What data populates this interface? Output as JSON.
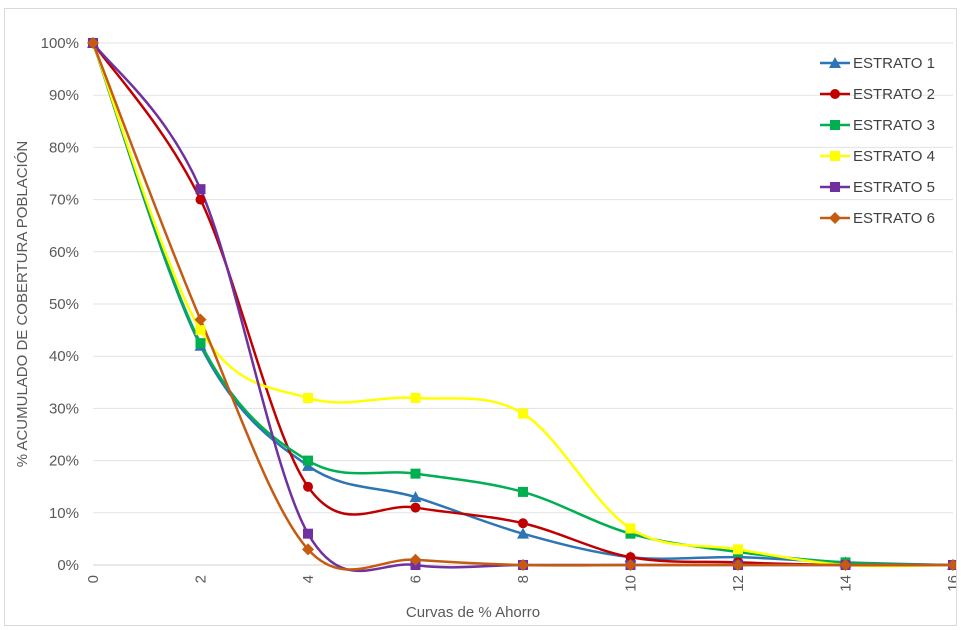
{
  "chart_data": {
    "type": "line",
    "title": "",
    "xlabel": "Curvas de % Ahorro",
    "ylabel": "% ACUMULADO DE COBERTURA POBLACIÓN",
    "x": [
      0,
      2,
      4,
      6,
      8,
      10,
      12,
      14,
      16
    ],
    "xticks": [
      "0",
      "2",
      "4",
      "6",
      "8",
      "10",
      "12",
      "14",
      "16"
    ],
    "xlim": [
      0,
      16
    ],
    "ylim": [
      0,
      100
    ],
    "yticks": [
      0,
      10,
      20,
      30,
      40,
      50,
      60,
      70,
      80,
      90,
      100
    ],
    "ytick_labels": [
      "0%",
      "10%",
      "20%",
      "30%",
      "40%",
      "50%",
      "60%",
      "70%",
      "80%",
      "90%",
      "100%"
    ],
    "grid": "horizontal",
    "legend_position": "top-right",
    "smooth": true,
    "series": [
      {
        "name": "ESTRATO 1",
        "color": "#2e75b6",
        "marker": "triangle",
        "values": [
          100,
          42,
          19,
          13,
          6,
          1.5,
          1.5,
          0.5,
          0
        ]
      },
      {
        "name": "ESTRATO 2",
        "color": "#c00000",
        "marker": "circle",
        "values": [
          100,
          70,
          15,
          11,
          8,
          1.5,
          0.5,
          0,
          0
        ]
      },
      {
        "name": "ESTRATO 3",
        "color": "#00b050",
        "marker": "square",
        "values": [
          100,
          42.5,
          20,
          17.5,
          14,
          6,
          2.5,
          0.5,
          0
        ]
      },
      {
        "name": "ESTRATO 4",
        "color": "#ffff00",
        "marker": "square",
        "values": [
          100,
          45,
          32,
          32,
          29,
          7,
          3,
          0,
          0
        ]
      },
      {
        "name": "ESTRATO 5",
        "color": "#7030a0",
        "marker": "square",
        "values": [
          100,
          72,
          6,
          0,
          0,
          0,
          0,
          0,
          0
        ]
      },
      {
        "name": "ESTRATO 6",
        "color": "#c55a11",
        "marker": "diamond",
        "values": [
          100,
          47,
          3,
          1,
          0,
          0,
          0,
          0,
          0
        ]
      }
    ]
  }
}
